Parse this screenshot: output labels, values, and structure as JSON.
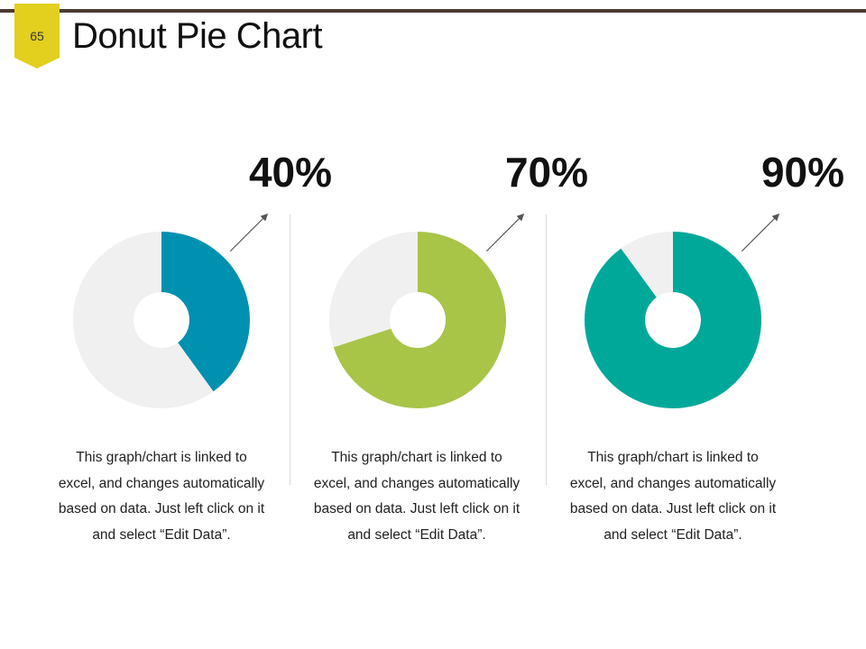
{
  "page_number": "65",
  "title": "Donut Pie Chart",
  "colors": {
    "badge": "#e2cf1e",
    "remainder": "#f0f0f0",
    "arrow": "#555555",
    "header_rule": "#4a3a32"
  },
  "chart_data": [
    {
      "type": "pie",
      "variant": "donut",
      "value_percent": 40,
      "label": "40%",
      "color": "#0090b0",
      "description": "This graph/chart is linked to excel, and changes automatically based on data. Just left click on it and select “Edit Data”."
    },
    {
      "type": "pie",
      "variant": "donut",
      "value_percent": 70,
      "label": "70%",
      "color": "#a8c548",
      "description": "This graph/chart is linked to excel, and changes automatically based on data. Just left click on it and select “Edit Data”."
    },
    {
      "type": "pie",
      "variant": "donut",
      "value_percent": 90,
      "label": "90%",
      "color": "#00a89a",
      "description": "This graph/chart is linked to excel, and changes automatically based on data. Just left click on it and select “Edit Data”."
    }
  ]
}
